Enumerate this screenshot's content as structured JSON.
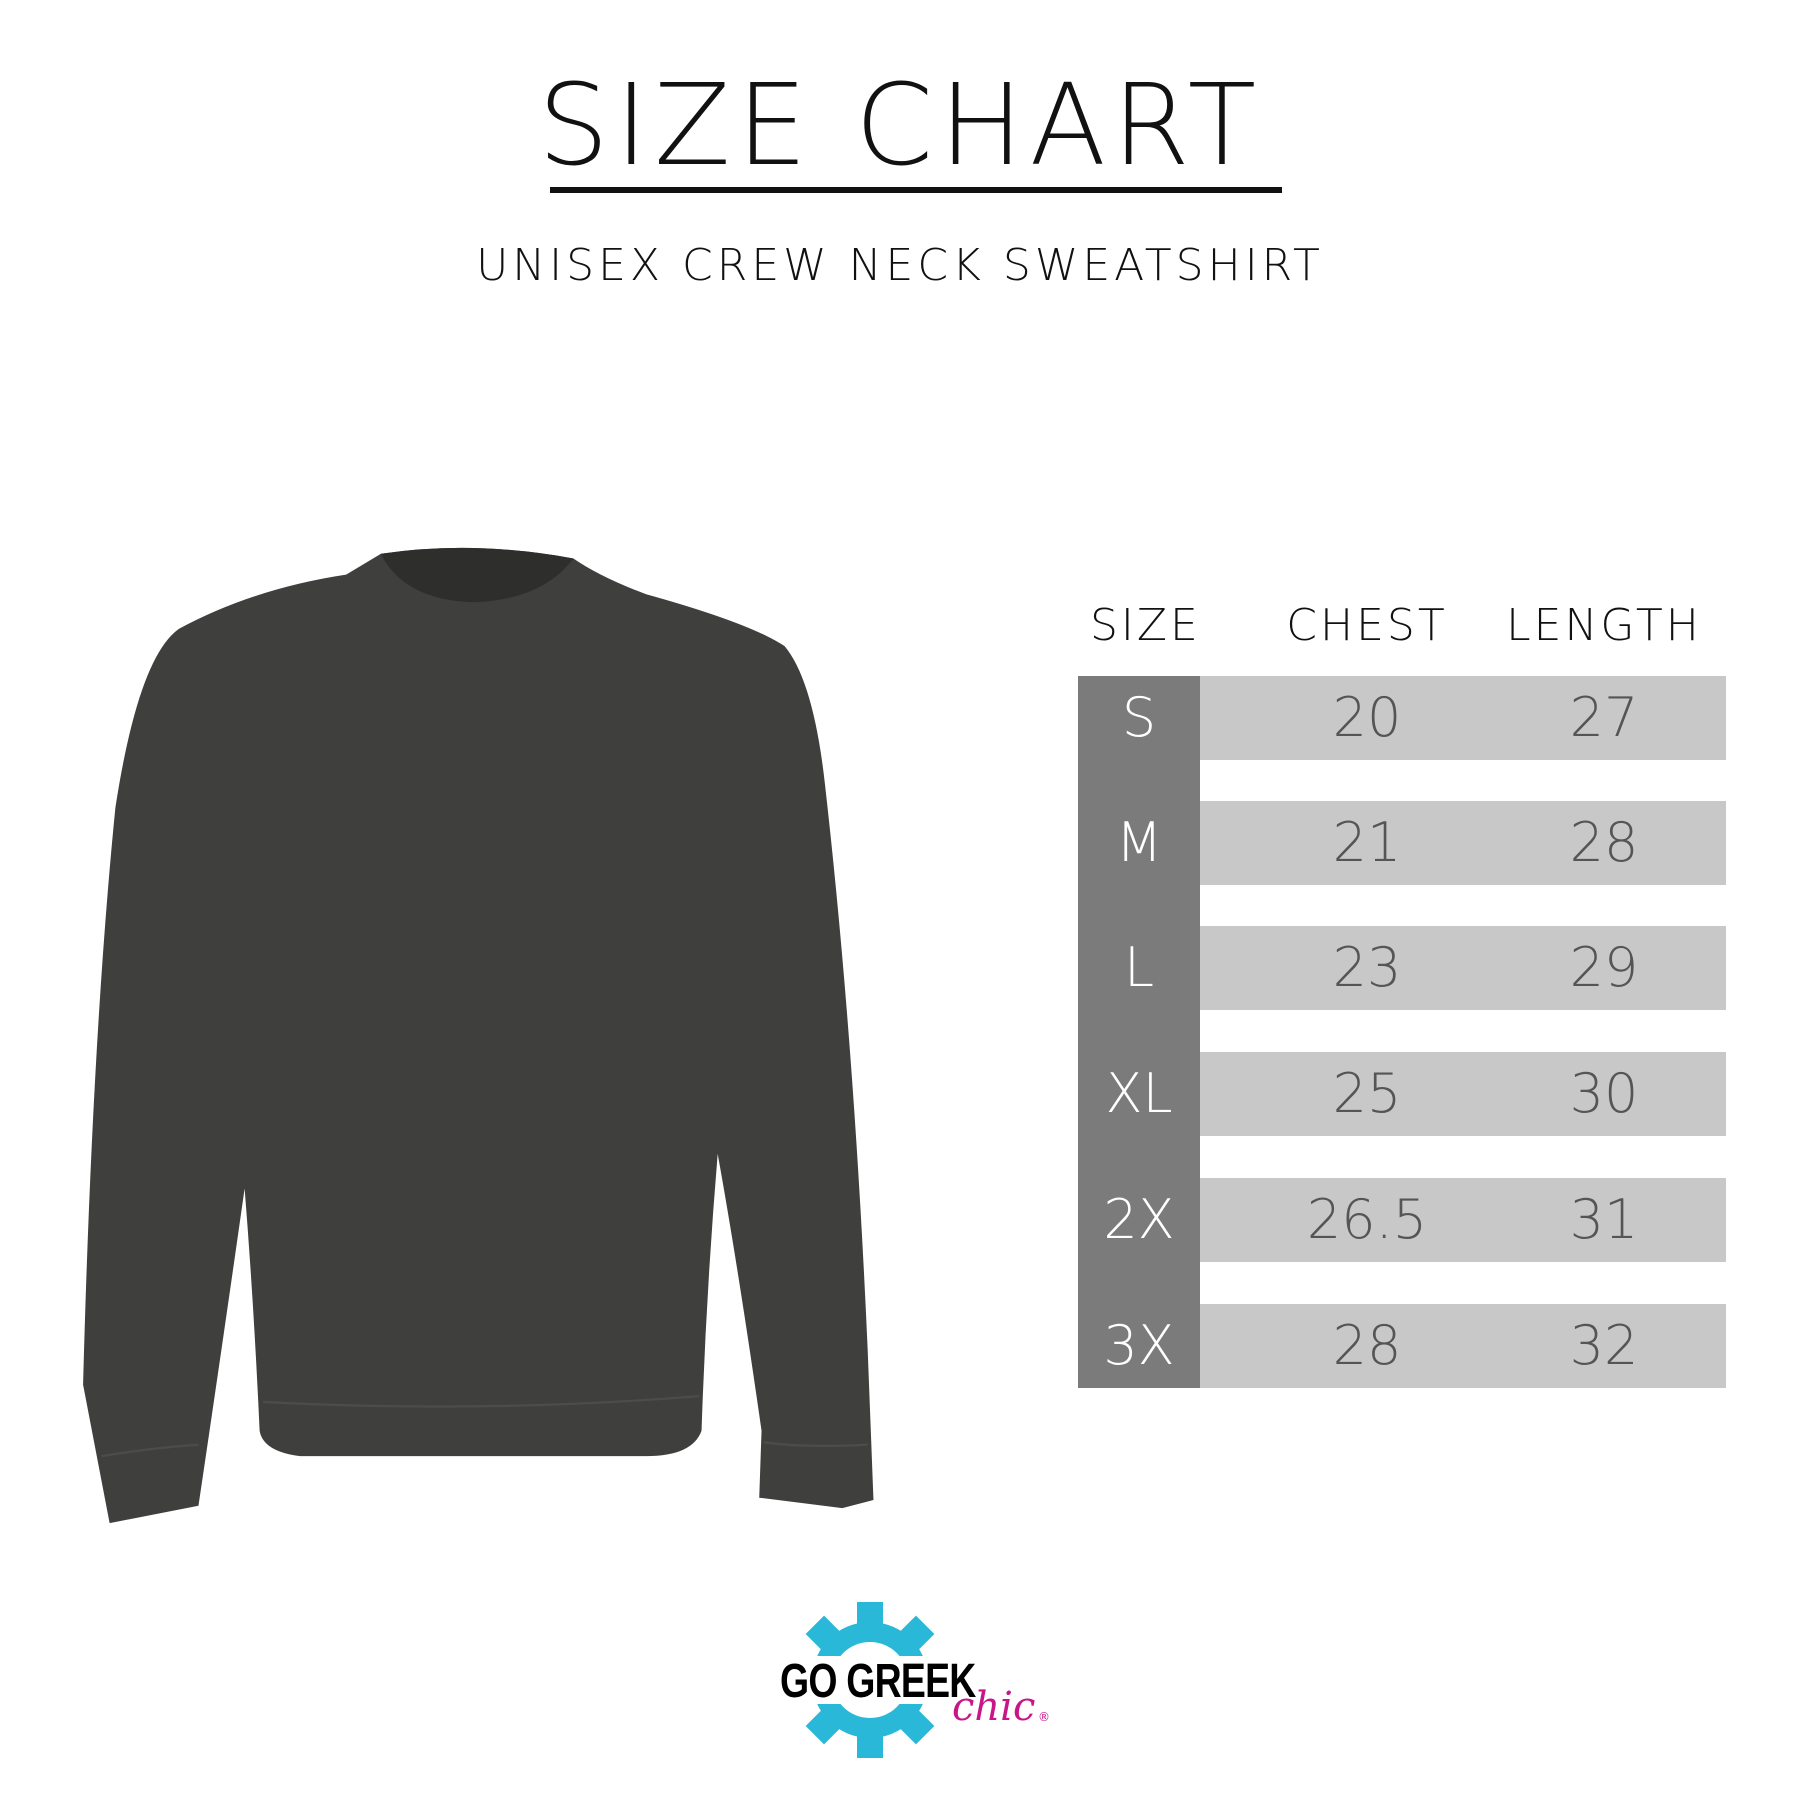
{
  "header": {
    "title": "SIZE CHART",
    "subtitle": "UNISEX CREW NECK SWEATSHIRT"
  },
  "table": {
    "columns": [
      "SIZE",
      "CHEST",
      "LENGTH"
    ],
    "rows": [
      {
        "size": "S",
        "chest": "20",
        "length": "27"
      },
      {
        "size": "M",
        "chest": "21",
        "length": "28"
      },
      {
        "size": "L",
        "chest": "23",
        "length": "29"
      },
      {
        "size": "XL",
        "chest": "25",
        "length": "30"
      },
      {
        "size": "2X",
        "chest": "26.5",
        "length": "31"
      },
      {
        "size": "3X",
        "chest": "28",
        "length": "32"
      }
    ]
  },
  "logo": {
    "text_main": "GO GREEK",
    "text_script": "chic",
    "mark": "®"
  },
  "colors": {
    "size_column": "#7b7b7b",
    "row_fill": "#c8c8c8",
    "sweatshirt": "#3f3f3d",
    "logo_blue": "#29b8d8",
    "logo_pink": "#c8168a"
  }
}
